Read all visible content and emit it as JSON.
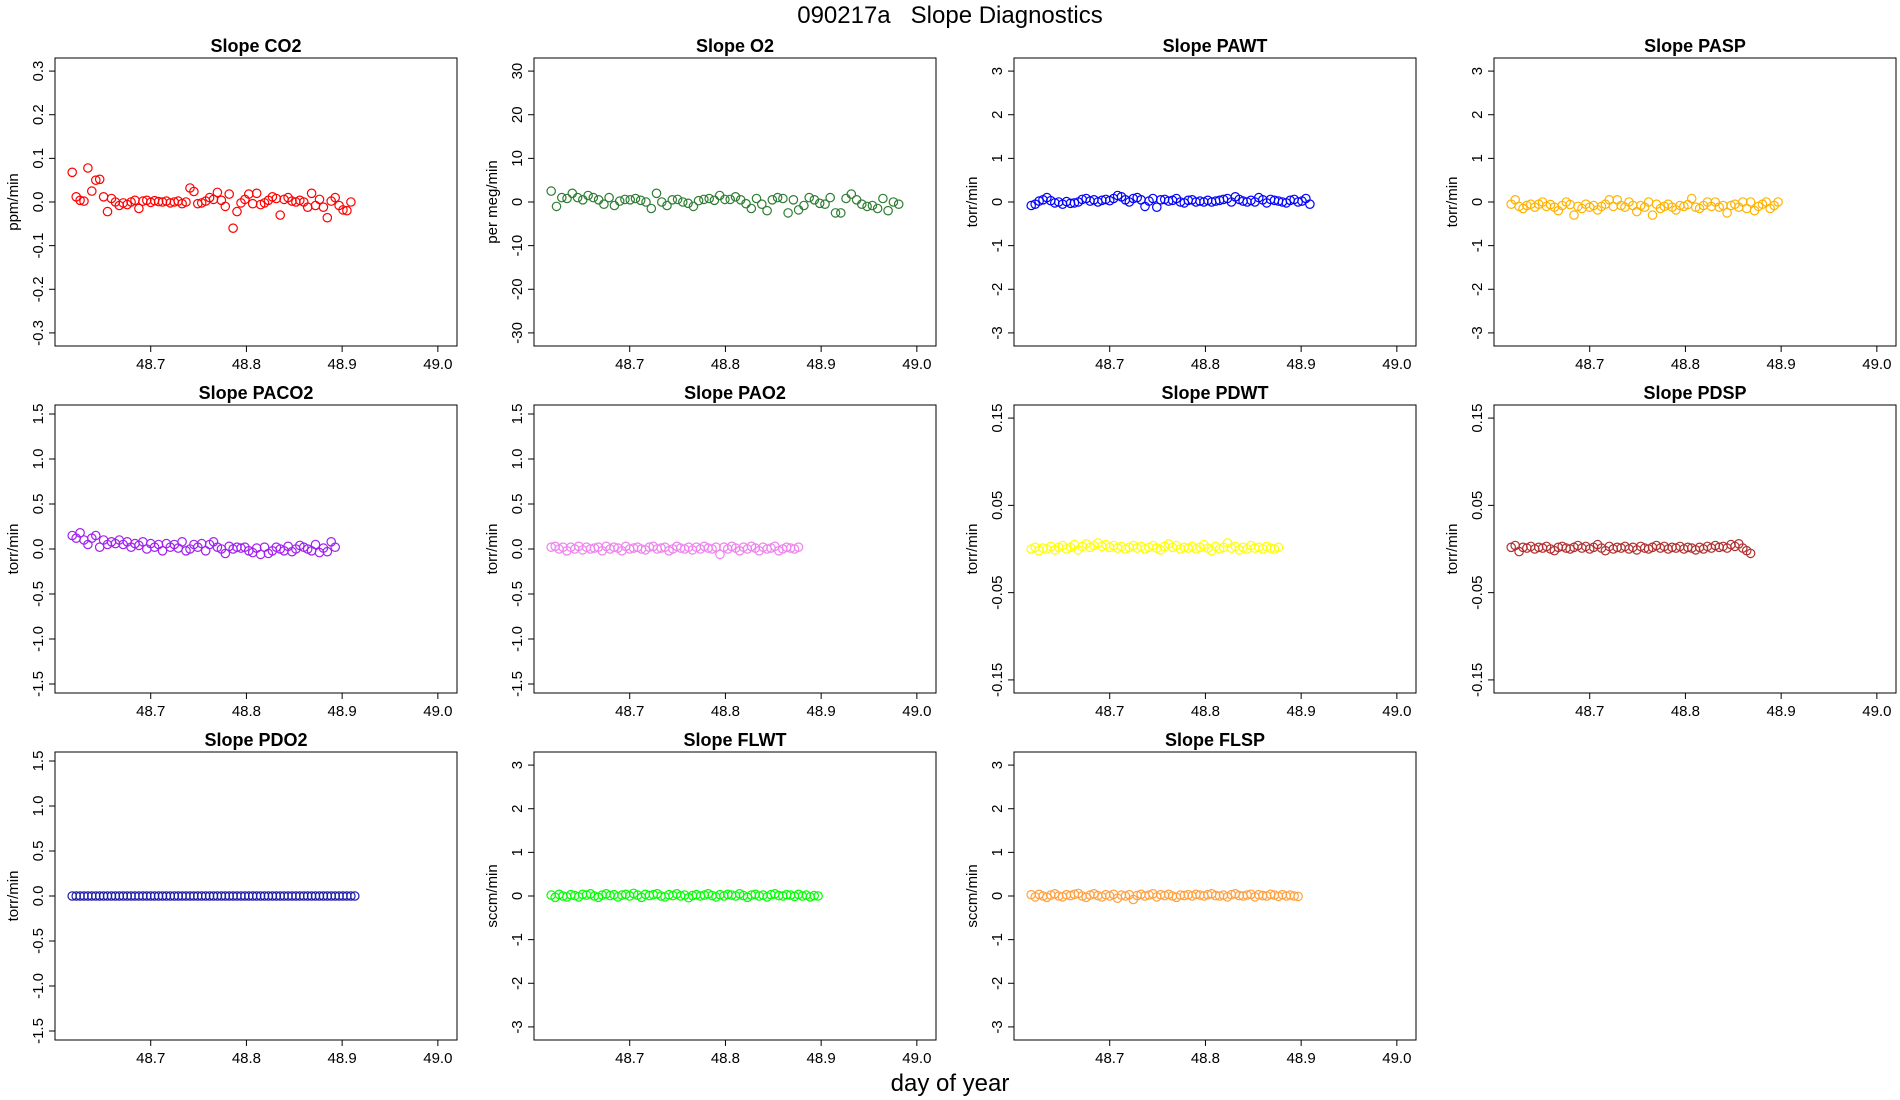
{
  "title": "090217a   Slope Diagnostics",
  "xlabel": "day of year",
  "chart_data": [
    {
      "type": "scatter",
      "title": "Slope CO2",
      "ylabel": "ppm/min",
      "ylim": [
        -0.33,
        0.33
      ],
      "yticks": [
        "0.3",
        "0.2",
        "0.1",
        "0.0",
        "-0.1",
        "-0.2",
        "-0.3"
      ],
      "ytick_values": [
        0.3,
        0.2,
        0.1,
        0,
        -0.1,
        -0.2,
        -0.3
      ],
      "xlim": [
        48.6,
        49.02
      ],
      "xticks": [
        "48.7",
        "48.8",
        "48.9",
        "49.0"
      ],
      "xtick_values": [
        48.7,
        48.8,
        48.9,
        49.0
      ],
      "color": "#ff0000",
      "x_start": 48.618,
      "x_step": 0.0041,
      "values": [
        0.068,
        0.012,
        0.004,
        0.002,
        0.078,
        0.025,
        0.05,
        0.052,
        0.012,
        -0.022,
        0.008,
        0.0,
        -0.008,
        -0.002,
        -0.006,
        0.0,
        0.004,
        -0.015,
        0.002,
        0.004,
        -0.001,
        0.003,
        0.001,
        0.0,
        0.002,
        -0.002,
        0.0,
        0.002,
        -0.004,
        0.0,
        0.032,
        0.024,
        -0.004,
        -0.002,
        0.002,
        0.01,
        0.006,
        0.022,
        0.004,
        -0.01,
        0.018,
        -0.06,
        -0.022,
        -0.002,
        0.006,
        0.018,
        -0.004,
        0.02,
        -0.006,
        -0.002,
        0.004,
        0.012,
        0.008,
        -0.03,
        0.006,
        0.01,
        0.002,
        0.0,
        0.004,
        0.0,
        -0.012,
        0.02,
        -0.008,
        0.006,
        -0.012,
        -0.036,
        0.002,
        0.01,
        -0.008,
        -0.018,
        -0.02,
        0.0
      ]
    },
    {
      "type": "scatter",
      "title": "Slope O2",
      "ylabel": "per meg/min",
      "ylim": [
        -33,
        33
      ],
      "yticks": [
        "30",
        "20",
        "10",
        "0",
        "-10",
        "-20",
        "-30"
      ],
      "ytick_values": [
        30,
        20,
        10,
        0,
        -10,
        -20,
        -30
      ],
      "xlim": [
        48.6,
        49.02
      ],
      "xticks": [
        "48.7",
        "48.8",
        "48.9",
        "49.0"
      ],
      "xtick_values": [
        48.7,
        48.8,
        48.9,
        49.0
      ],
      "color": "#2e7d32",
      "x_start": 48.618,
      "x_step": 0.0055,
      "values": [
        2.5,
        -1.0,
        1.0,
        0.8,
        2.0,
        1.0,
        0.5,
        1.5,
        1.0,
        0.5,
        -0.5,
        1.0,
        -0.8,
        0.2,
        0.6,
        0.5,
        0.8,
        0.4,
        0.0,
        -1.5,
        2.0,
        0.0,
        -0.8,
        0.5,
        0.6,
        0.0,
        -0.3,
        -1.0,
        0.3,
        0.6,
        0.8,
        0.4,
        1.5,
        0.6,
        0.6,
        1.2,
        0.5,
        -0.4,
        -1.5,
        0.8,
        -0.5,
        -2.0,
        0.5,
        1.0,
        0.8,
        -2.5,
        0.5,
        -1.8,
        -0.8,
        1.0,
        0.5,
        -0.3,
        -0.5,
        1.0,
        -2.5,
        -2.5,
        0.8,
        1.8,
        0.5,
        -0.5,
        -1.0,
        -0.8,
        -1.5,
        0.8,
        -2.0,
        0.0,
        -0.5
      ]
    },
    {
      "type": "scatter",
      "title": "Slope PAWT",
      "ylabel": "torr/min",
      "ylim": [
        -3.3,
        3.3
      ],
      "yticks": [
        "3",
        "2",
        "1",
        "0",
        "-1",
        "-2",
        "-3"
      ],
      "ytick_values": [
        3,
        2,
        1,
        0,
        -1,
        -2,
        -3
      ],
      "xlim": [
        48.6,
        49.02
      ],
      "xticks": [
        "48.7",
        "48.8",
        "48.9",
        "49.0"
      ],
      "xtick_values": [
        48.7,
        48.8,
        48.9,
        49.0
      ],
      "color": "#0000ff",
      "x_start": 48.618,
      "x_step": 0.0041,
      "values": [
        -0.08,
        -0.05,
        0.02,
        0.05,
        0.1,
        0.03,
        -0.02,
        0.0,
        -0.05,
        0.01,
        -0.03,
        -0.02,
        0.0,
        0.06,
        0.08,
        0.02,
        0.05,
        0.0,
        0.04,
        0.06,
        0.03,
        0.08,
        0.15,
        0.12,
        0.05,
        0.0,
        0.08,
        0.1,
        0.05,
        -0.1,
        0.02,
        0.08,
        -0.12,
        0.05,
        0.06,
        0.02,
        0.04,
        0.08,
        0.0,
        -0.02,
        0.04,
        0.05,
        0.0,
        0.02,
        0.0,
        0.04,
        0.0,
        0.02,
        0.04,
        0.06,
        0.08,
        0.0,
        0.12,
        0.06,
        0.02,
        0.0,
        0.04,
        0.0,
        0.1,
        0.05,
        -0.02,
        0.06,
        0.04,
        0.02,
        0.0,
        -0.02,
        0.04,
        0.06,
        0.0,
        0.02,
        0.08,
        -0.05
      ]
    },
    {
      "type": "scatter",
      "title": "Slope PASP",
      "ylabel": "torr/min",
      "ylim": [
        -3.3,
        3.3
      ],
      "yticks": [
        "3",
        "2",
        "1",
        "0",
        "-1",
        "-2",
        "-3"
      ],
      "ytick_values": [
        3,
        2,
        1,
        0,
        -1,
        -2,
        -3
      ],
      "xlim": [
        48.6,
        49.02
      ],
      "xticks": [
        "48.7",
        "48.8",
        "48.9",
        "49.0"
      ],
      "xtick_values": [
        48.7,
        48.8,
        48.9,
        49.0
      ],
      "color": "#ffb300",
      "x_start": 48.618,
      "x_step": 0.0041,
      "values": [
        -0.05,
        0.05,
        -0.1,
        -0.15,
        -0.08,
        -0.05,
        -0.12,
        -0.05,
        0.0,
        -0.1,
        -0.06,
        -0.12,
        -0.2,
        -0.08,
        0.0,
        -0.06,
        -0.3,
        -0.1,
        -0.15,
        -0.05,
        -0.12,
        -0.08,
        -0.18,
        -0.1,
        -0.05,
        0.05,
        -0.1,
        0.05,
        -0.08,
        -0.12,
        0.0,
        -0.08,
        -0.22,
        -0.08,
        -0.12,
        0.0,
        -0.3,
        -0.05,
        -0.15,
        -0.1,
        -0.05,
        -0.12,
        -0.18,
        -0.08,
        -0.1,
        -0.06,
        0.08,
        -0.12,
        -0.15,
        -0.08,
        0.0,
        -0.1,
        0.0,
        -0.12,
        -0.08,
        -0.25,
        -0.08,
        -0.05,
        -0.12,
        0.0,
        -0.15,
        0.0,
        -0.2,
        -0.1,
        -0.05,
        0.0,
        -0.15,
        -0.08,
        0.0
      ]
    },
    {
      "type": "scatter",
      "title": "Slope PACO2",
      "ylabel": "torr/min",
      "ylim": [
        -1.6,
        1.6
      ],
      "yticks": [
        "1.5",
        "1.0",
        "0.5",
        "0.0",
        "-0.5",
        "-1.0",
        "-1.5"
      ],
      "ytick_values": [
        1.5,
        1.0,
        0.5,
        0,
        -0.5,
        -1.0,
        -1.5
      ],
      "xlim": [
        48.6,
        49.02
      ],
      "xticks": [
        "48.7",
        "48.8",
        "48.9",
        "49.0"
      ],
      "xtick_values": [
        48.7,
        48.8,
        48.9,
        49.0
      ],
      "color": "#a020f0",
      "x_start": 48.618,
      "x_step": 0.0041,
      "values": [
        0.15,
        0.12,
        0.18,
        0.1,
        0.05,
        0.12,
        0.15,
        0.02,
        0.1,
        0.05,
        0.08,
        0.06,
        0.1,
        0.05,
        0.08,
        0.02,
        0.06,
        0.04,
        0.08,
        0.0,
        0.06,
        0.02,
        0.05,
        -0.02,
        0.06,
        0.02,
        0.05,
        0.01,
        0.08,
        -0.02,
        0.0,
        0.05,
        0.02,
        0.06,
        -0.02,
        0.05,
        0.08,
        0.02,
        0.0,
        -0.05,
        0.03,
        0.0,
        0.02,
        0.01,
        0.02,
        -0.02,
        -0.04,
        0.01,
        -0.06,
        0.02,
        -0.05,
        -0.02,
        0.02,
        0.0,
        -0.02,
        0.03,
        -0.03,
        0.0,
        0.04,
        0.02,
        0.0,
        -0.02,
        0.05,
        -0.04,
        0.01,
        -0.03,
        0.08,
        0.02
      ]
    },
    {
      "type": "scatter",
      "title": "Slope PAO2",
      "ylabel": "torr/min",
      "ylim": [
        -1.6,
        1.6
      ],
      "yticks": [
        "1.5",
        "1.0",
        "0.5",
        "0.0",
        "-0.5",
        "-1.0",
        "-1.5"
      ],
      "ytick_values": [
        1.5,
        1.0,
        0.5,
        0,
        -0.5,
        -1.0,
        -1.5
      ],
      "xlim": [
        48.6,
        49.02
      ],
      "xticks": [
        "48.7",
        "48.8",
        "48.9",
        "49.0"
      ],
      "xtick_values": [
        48.7,
        48.8,
        48.9,
        49.0
      ],
      "color": "#ee82ee",
      "x_start": 48.618,
      "x_step": 0.0041,
      "values": [
        0.02,
        0.03,
        0.0,
        0.02,
        -0.02,
        0.02,
        0.0,
        0.03,
        -0.01,
        0.02,
        0.0,
        0.01,
        0.02,
        -0.02,
        0.03,
        0.0,
        0.02,
        0.01,
        -0.02,
        0.03,
        0.0,
        0.01,
        0.02,
        0.0,
        -0.01,
        0.02,
        0.03,
        0.0,
        0.01,
        0.02,
        -0.02,
        0.0,
        0.03,
        0.01,
        0.0,
        0.02,
        -0.01,
        0.02,
        0.0,
        0.03,
        0.01,
        0.0,
        0.02,
        -0.06,
        0.02,
        0.0,
        0.03,
        0.01,
        -0.02,
        0.02,
        0.0,
        0.03,
        0.01,
        -0.02,
        0.02,
        0.0,
        0.01,
        0.03,
        -0.02,
        0.0,
        0.02,
        0.01,
        0.0,
        0.02
      ]
    },
    {
      "type": "scatter",
      "title": "Slope PDWT",
      "ylabel": "torr/min",
      "ylim": [
        -0.165,
        0.165
      ],
      "yticks": [
        "0.15",
        "0.05",
        "-0.05",
        "-0.15"
      ],
      "ytick_values": [
        0.15,
        0.05,
        -0.05,
        -0.15
      ],
      "xlim": [
        48.6,
        49.02
      ],
      "xticks": [
        "48.7",
        "48.8",
        "48.9",
        "49.0"
      ],
      "xtick_values": [
        48.7,
        48.8,
        48.9,
        49.0
      ],
      "color": "#ffff00",
      "x_start": 48.618,
      "x_step": 0.0041,
      "values": [
        0.0,
        0.002,
        -0.002,
        0.001,
        0.0,
        0.003,
        -0.001,
        0.002,
        0.004,
        0.0,
        0.002,
        0.005,
        -0.001,
        0.003,
        0.006,
        0.002,
        0.004,
        0.007,
        0.003,
        0.005,
        0.002,
        0.004,
        0.001,
        0.003,
        0.0,
        0.002,
        0.004,
        0.001,
        0.003,
        0.0,
        0.002,
        0.004,
        0.001,
        -0.001,
        0.003,
        0.006,
        0.002,
        0.004,
        0.0,
        0.002,
        0.001,
        0.003,
        0.0,
        0.002,
        0.005,
        0.001,
        -0.002,
        0.003,
        0.0,
        0.002,
        0.007,
        0.001,
        0.003,
        -0.001,
        0.002,
        0.0,
        0.004,
        0.001,
        0.002,
        0.0,
        0.003,
        0.001,
        0.0,
        0.002
      ]
    },
    {
      "type": "scatter",
      "title": "Slope PDSP",
      "ylabel": "torr/min",
      "ylim": [
        -0.165,
        0.165
      ],
      "yticks": [
        "0.15",
        "0.05",
        "-0.05",
        "-0.15"
      ],
      "ytick_values": [
        0.15,
        0.05,
        -0.05,
        -0.15
      ],
      "xlim": [
        48.6,
        49.02
      ],
      "xticks": [
        "48.7",
        "48.8",
        "48.9",
        "49.0"
      ],
      "xtick_values": [
        48.7,
        48.8,
        48.9,
        49.0
      ],
      "color": "#b03030",
      "x_start": 48.618,
      "x_step": 0.0041,
      "values": [
        0.002,
        0.004,
        -0.003,
        0.002,
        0.001,
        0.003,
        0.0,
        0.002,
        0.001,
        0.003,
        0.0,
        -0.002,
        0.002,
        0.003,
        0.001,
        0.0,
        0.002,
        0.004,
        0.001,
        0.003,
        0.0,
        0.002,
        0.005,
        0.001,
        -0.002,
        0.003,
        0.0,
        0.002,
        0.001,
        0.003,
        0.0,
        0.002,
        -0.001,
        0.003,
        0.001,
        0.0,
        0.002,
        0.004,
        0.001,
        0.003,
        0.0,
        0.002,
        0.001,
        0.003,
        0.0,
        0.002,
        0.001,
        -0.001,
        0.002,
        0.0,
        0.003,
        0.001,
        0.004,
        0.002,
        0.003,
        0.001,
        0.005,
        0.003,
        0.006,
        0.001,
        -0.002,
        -0.005
      ]
    },
    {
      "type": "scatter",
      "title": "Slope PDO2",
      "ylabel": "torr/min",
      "ylim": [
        -1.6,
        1.6
      ],
      "yticks": [
        "1.5",
        "1.0",
        "0.5",
        "0.0",
        "-0.5",
        "-1.0",
        "-1.5"
      ],
      "ytick_values": [
        1.5,
        1.0,
        0.5,
        0,
        -0.5,
        -1.0,
        -1.5
      ],
      "xlim": [
        48.6,
        49.02
      ],
      "xticks": [
        "48.7",
        "48.8",
        "48.9",
        "49.0"
      ],
      "xtick_values": [
        48.7,
        48.8,
        48.9,
        49.0
      ],
      "color": "#1a1aa6",
      "x_start": 48.618,
      "x_step": 0.0041,
      "values": [
        0,
        0,
        0,
        0,
        0,
        0,
        0,
        0,
        0,
        0,
        0,
        0,
        0,
        0,
        0,
        0,
        0,
        0,
        0,
        0,
        0,
        0,
        0,
        0,
        0,
        0,
        0,
        0,
        0,
        0,
        0,
        0,
        0,
        0,
        0,
        0,
        0,
        0,
        0,
        0,
        0,
        0,
        0,
        0,
        0,
        0,
        0,
        0,
        0,
        0,
        0,
        0,
        0,
        0,
        0,
        0,
        0,
        0,
        0,
        0,
        0,
        0,
        0,
        0,
        0,
        0,
        0,
        0,
        0,
        0,
        0,
        0,
        0
      ]
    },
    {
      "type": "scatter",
      "title": "Slope FLWT",
      "ylabel": "sccm/min",
      "ylim": [
        -3.3,
        3.3
      ],
      "yticks": [
        "3",
        "2",
        "1",
        "0",
        "-1",
        "-2",
        "-3"
      ],
      "ytick_values": [
        3,
        2,
        1,
        0,
        -1,
        -2,
        -3
      ],
      "xlim": [
        48.6,
        49.02
      ],
      "xticks": [
        "48.7",
        "48.8",
        "48.9",
        "49.0"
      ],
      "xtick_values": [
        48.7,
        48.8,
        48.9,
        49.0
      ],
      "color": "#00ff00",
      "x_start": 48.618,
      "x_step": 0.0041,
      "values": [
        0.02,
        -0.03,
        0.04,
        0.0,
        -0.02,
        0.03,
        0.01,
        -0.02,
        0.04,
        0.02,
        0.05,
        0.0,
        -0.03,
        0.02,
        0.05,
        0.01,
        0.03,
        -0.02,
        0.02,
        0.04,
        0.0,
        0.06,
        0.02,
        -0.03,
        0.04,
        0.01,
        0.03,
        0.05,
        0.0,
        -0.02,
        0.03,
        0.01,
        0.05,
        0.0,
        0.02,
        -0.04,
        0.01,
        0.03,
        0.0,
        0.02,
        0.05,
        0.01,
        -0.02,
        0.03,
        0.0,
        0.04,
        0.02,
        0.0,
        0.05,
        0.01,
        -0.03,
        0.02,
        0.04,
        0.0,
        0.02,
        -0.02,
        0.03,
        0.05,
        0.01,
        0.0,
        0.03,
        0.02,
        -0.01,
        0.04,
        0.0,
        0.02,
        -0.02,
        0.01,
        0.0
      ]
    },
    {
      "type": "scatter",
      "title": "Slope FLSP",
      "ylabel": "sccm/min",
      "ylim": [
        -3.3,
        3.3
      ],
      "yticks": [
        "3",
        "2",
        "1",
        "0",
        "-1",
        "-2",
        "-3"
      ],
      "ytick_values": [
        3,
        2,
        1,
        0,
        -1,
        -2,
        -3
      ],
      "xlim": [
        48.6,
        49.02
      ],
      "xticks": [
        "48.7",
        "48.8",
        "48.9",
        "49.0"
      ],
      "xtick_values": [
        48.7,
        48.8,
        48.9,
        49.0
      ],
      "color": "#ffa040",
      "x_start": 48.618,
      "x_step": 0.0041,
      "values": [
        0.03,
        -0.02,
        0.04,
        0.0,
        -0.03,
        0.02,
        0.05,
        0.0,
        -0.02,
        0.03,
        0.01,
        0.04,
        0.06,
        0.0,
        -0.03,
        0.02,
        0.05,
        0.01,
        -0.02,
        0.03,
        0.0,
        0.04,
        -0.05,
        0.02,
        0.0,
        0.03,
        -0.08,
        0.01,
        0.04,
        0.0,
        0.02,
        0.05,
        -0.02,
        0.03,
        0.01,
        0.04,
        0.0,
        -0.03,
        0.02,
        0.01,
        0.03,
        0.0,
        0.04,
        0.02,
        0.0,
        0.03,
        0.05,
        0.01,
        0.0,
        0.02,
        -0.02,
        0.03,
        0.05,
        0.01,
        0.0,
        0.02,
        0.04,
        -0.02,
        0.03,
        0.01,
        0.0,
        0.04,
        0.02,
        -0.01,
        0.03,
        0.0,
        0.02,
        0.0,
        -0.01
      ]
    }
  ]
}
